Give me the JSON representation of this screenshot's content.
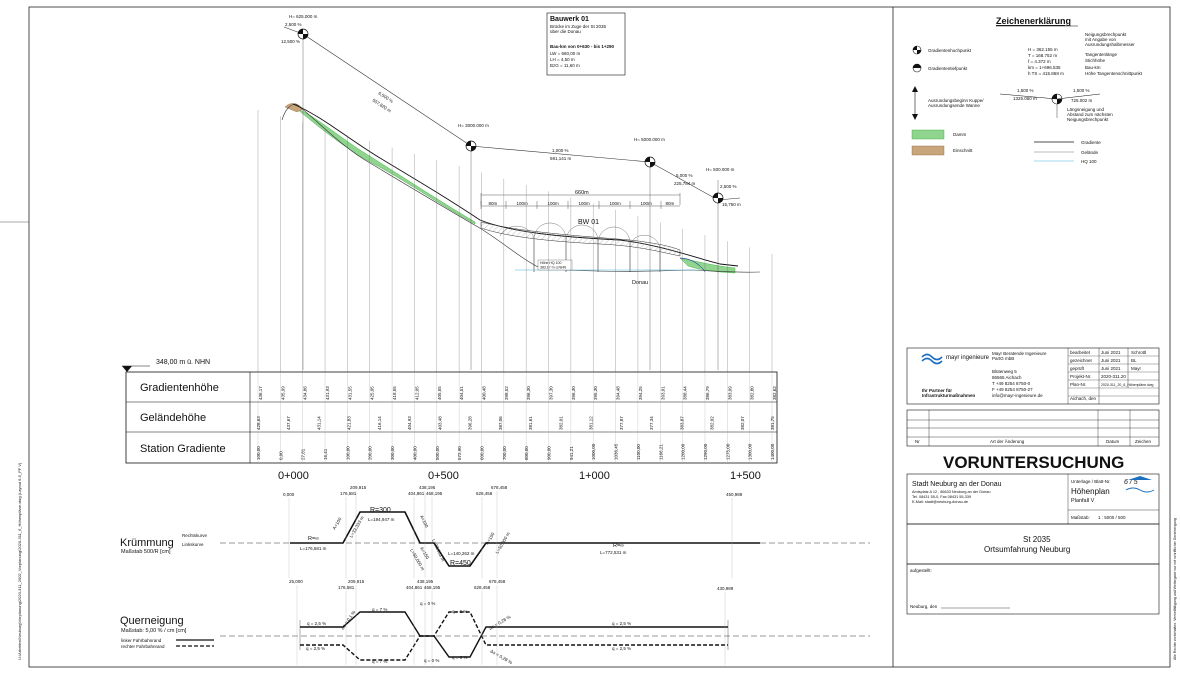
{
  "sheet": {
    "title": "VORUNTERSUCHUNG",
    "client_name": "Stadt Neuburg an der Donau",
    "client_addr1": "Amtsplatz A 12 , 86633 Neuburg an der Donau",
    "client_addr2": "Tel. 08431 55-0, Fax 08431 55-339",
    "client_addr3": "E-Mail: stadt@neuburg-donau.de",
    "sheet_no_label": "Unterlage / Blatt-Nr.",
    "sheet_no": "6 / 5",
    "plan_title": "Höhenplan",
    "plan_sub": "Planfall V",
    "scale_label": "Maßstab:",
    "scale": "1 : 5000 / 500",
    "project_name": "St 2035",
    "project_sub": "Ortsumfahrung Neuburg",
    "aufgestellt": "aufgestellt:",
    "place_date": "Neuburg, den",
    "side_path": "U:\\Arbeiten\\Neuburg\\Vorplanung\\2020-311_2002_Vorplanung\\2020-311_6_Höhenpläne.dwg (Layout 6-5_PF V)",
    "side_note": "Alle Rechte vorbehalten. Vervielfältigung und Weitergabe nur mit schriftlicher Genehmigung",
    "ref_level": "348,00 m ü. NHN"
  },
  "legend": {
    "title": "Zeichenerklärung",
    "item1": "Gradientenhochpunkt",
    "item2": "Gradiententiefpunkt",
    "item3a": "Ausrundungsbeginn Kuppe/",
    "item3b": "Ausrundungsende Wanne",
    "damm": "Damm",
    "einschnitt": "Einschnitt",
    "gradiente": "Gradiente",
    "gelaende": "Gelände",
    "hq": "HQ 100",
    "desc1": "Neigungsbrechpunkt",
    "desc2": "mit Angabe von",
    "desc3": "Ausrundungshalbmesser",
    "desc4": "Tangentenlänge",
    "desc5": "Stichhöhe",
    "desc6": "Bau-km",
    "desc7": "Höhe Tangentenschnittpunkt",
    "vals": [
      "H    =  362.155 m",
      "T    =  168.752 m",
      "f      =      4.372 m",
      "km  =  1+696.535",
      "h TS =  415.868 m"
    ],
    "slope_l": "1,500 %",
    "slope_r": "1,500 %",
    "len_l": "1325.050 m",
    "len_r": "725.002 m",
    "desc8": "Längsneigung und",
    "desc9": "Abstand zum nächsten",
    "desc10": "Neigungsbrechpunkt"
  },
  "firm": {
    "logo": "mayr ingenieure",
    "name": "Mayr Beratende Ingenieure",
    "form": "PartG mbB",
    "street": "Blütenweg 5",
    "city": "86565 Aichach",
    "tel": "T   +49 8254 8750-0",
    "fax": "F   +49 8254 8750-27",
    "mail": "info@mayr-ingenieure.de",
    "slogan1": "Ihr Partner für",
    "slogan2": "Infrastrukturmaßnahmen",
    "rows": [
      [
        "bearbeitet",
        "Juni 2021",
        "Schrottl"
      ],
      [
        "gezeichnet",
        "Juni 2021",
        "BL"
      ],
      [
        "geprüft",
        "Juni 2021",
        "Mayr"
      ]
    ],
    "projnr_l": "Projekt-Nr.",
    "projnr": "2020-311.20",
    "plannr_l": "Plan-Nr.",
    "plannr": "2020-311_20_6_Höhenpläne.dwg",
    "place": "Aichach, den"
  },
  "rev": {
    "nr": "Nr",
    "art": "Art der Änderung",
    "datum": "Datum",
    "zeichen": "Zeichen"
  },
  "bauwerk": {
    "title": "Bauwerk  01",
    "line1": "Brücke im Zuge der St 2035",
    "line2": "über die Donau",
    "km": "Bau-km  von 0+630 - bis 1+290",
    "lw": "LW  =   660,00 m",
    "lh": "LH  =       4,50 m",
    "bzo": "BzG =    11,60 m"
  },
  "profile": {
    "h1": "H= 625.000 m",
    "h2": "H= 3000.000 m",
    "h3": "H= 5000.000 m",
    "h4": "H= 500.000 m",
    "s0a": "2,500 %",
    "s0b": "12,500 %",
    "s1a": "6,500 %",
    "s1b": "557,820 m",
    "s2a": "1,000 %",
    "s2b": "591,141 m",
    "s3a": "5,000 %",
    "s3b": "225,784 m",
    "s4a": "2,500 %",
    "s4b": "15,750 m",
    "bw": "BW 01",
    "bw_total": "660m",
    "spans": [
      "80m",
      "100m",
      "100m",
      "100m",
      "100m",
      "100m",
      "80m"
    ],
    "donau": "Donau",
    "hq_box1": "Höhe HQ 100",
    "hq_box2": "383.17 m ü.NHN"
  },
  "band": {
    "label1": "Gradientenhöhe",
    "label2": "Geländehöhe",
    "label3": "Station Gradiente",
    "row1": [
      "436,17",
      "435,99",
      "434,86",
      "431,93",
      "431,55",
      "425,05",
      "418,55",
      "412,05",
      "405,55",
      "404,51",
      "400,48",
      "398,52",
      "396,30",
      "397,30",
      "396,30",
      "395,30",
      "394,48",
      "394,25",
      "393,01",
      "388,44",
      "386,79",
      "383,09",
      "382,80",
      "382,62"
    ],
    "row2": [
      "428,63",
      "437,67",
      "431,14",
      "421,83",
      "416,14",
      "404,93",
      "403,48",
      "396,28",
      "387,06",
      "381,61",
      "382,01",
      "381,12",
      "377,87",
      "377,34",
      "383,87",
      "382,02",
      "382,07",
      "381,75"
    ],
    "row3": [
      "100,00",
      "0,00",
      "27,81",
      "16,41",
      "100,00",
      "200,00",
      "300,00",
      "400,00",
      "500,00",
      "572,90",
      "600,00",
      "700,00",
      "800,00",
      "900,00",
      "941,21",
      "1000,00",
      "1036,45",
      "1100,00",
      "1166,21",
      "1200,00",
      "1290,00",
      "1275,00",
      "1300,00",
      "1400,00"
    ],
    "km0": "0+000",
    "km1": "0+500",
    "km2": "1+000",
    "km3": "1+500"
  },
  "kruemmung": {
    "label": "Krümmung",
    "scale": "Maßstab 500/R [cm]",
    "rechts": "Rechtskurve",
    "links": "Linkskurve",
    "top": [
      "0,000",
      "209,915",
      "176,581",
      "438,195",
      "404,861",
      "468,195",
      "628,458",
      "678,458",
      "450,989"
    ],
    "r_inf": "R=∞",
    "l1": "L=176,581 m",
    "a1": "A=100",
    "a1b": "L=33,333 m",
    "r300": "R=300",
    "l300": "L=194,947 m",
    "a2": "A=100",
    "a2b": "L=33,333 m",
    "a3": "A=150",
    "a3b": "L=50,000 m",
    "r450": "R=450",
    "l4": "L=140,262 m",
    "a4": "A=150",
    "a4b": "L=50,000 m",
    "r_inf2": "R=∞",
    "l5": "L=772,531 m"
  },
  "querneigung": {
    "label": "Querneigung",
    "scale": "Maßstab: 5,00 % / cm [cm]",
    "linker": "linker Fahrbahnrand",
    "rechter": "rechter Fahrbahnrand",
    "top": [
      "25,000",
      "209,915",
      "176,581",
      "438,195",
      "404,861",
      "468,195",
      "628,458",
      "678,458",
      "430,989"
    ],
    "q1": "q = 2,5 %",
    "q2": "q = 7 %",
    "q3": "q = 0 %",
    "q4": "q = 6 %",
    "q5": "q = 2,5 %",
    "dq1": "Δs = 0,1 %",
    "dq2": "Δs = 0,28 %"
  }
}
